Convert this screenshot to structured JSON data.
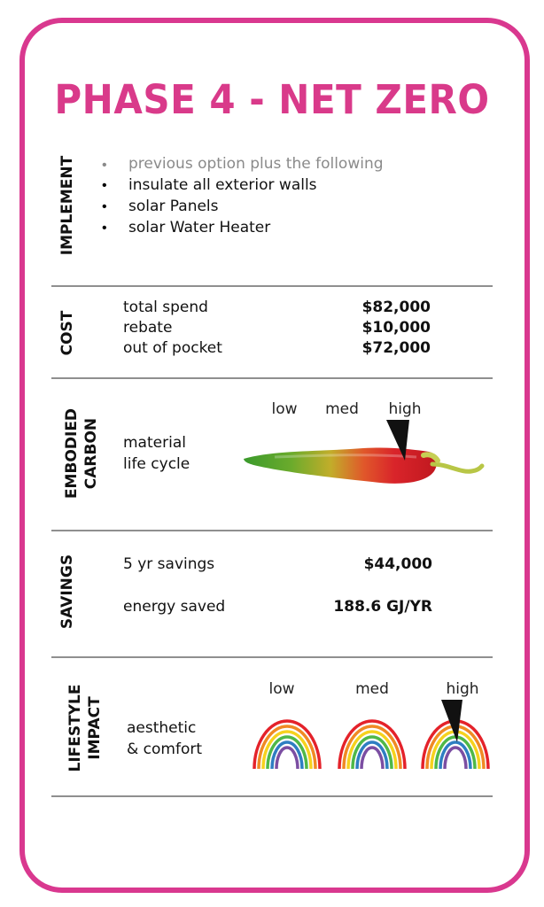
{
  "title": "PHASE 4 - NET ZERO",
  "colors": {
    "accent": "#d9388f",
    "divider": "#8f8f8f",
    "muted": "#8a8a8a"
  },
  "implement": {
    "label": "IMPLEMENT",
    "items": [
      "previous option plus the following",
      "insulate all exterior walls",
      "solar Panels",
      "solar Water Heater"
    ]
  },
  "cost": {
    "label": "COST",
    "rows": [
      {
        "name": "total spend",
        "value": "$82,000"
      },
      {
        "name": "rebate",
        "value": "$10,000"
      },
      {
        "name": "out of pocket",
        "value": "$72,000"
      }
    ]
  },
  "embodied_carbon": {
    "label_line1": "EMBODIED",
    "label_line2": "CARBON",
    "desc_line1": "material",
    "desc_line2": "life cycle",
    "scale": [
      "low",
      "med",
      "high"
    ],
    "rating": "high",
    "icon": "chili-pepper-icon"
  },
  "savings": {
    "label": "SAVINGS",
    "rows": [
      {
        "name": "5 yr savings",
        "value": "$44,000"
      },
      {
        "name": "energy saved",
        "value": "188.6 GJ/YR"
      }
    ]
  },
  "lifestyle": {
    "label_line1": "LIFESTYLE",
    "label_line2": "IMPACT",
    "desc_line1": "aesthetic",
    "desc_line2": "& comfort",
    "scale": [
      "low",
      "med",
      "high"
    ],
    "rating": "high",
    "icon": "rainbow-icon"
  }
}
